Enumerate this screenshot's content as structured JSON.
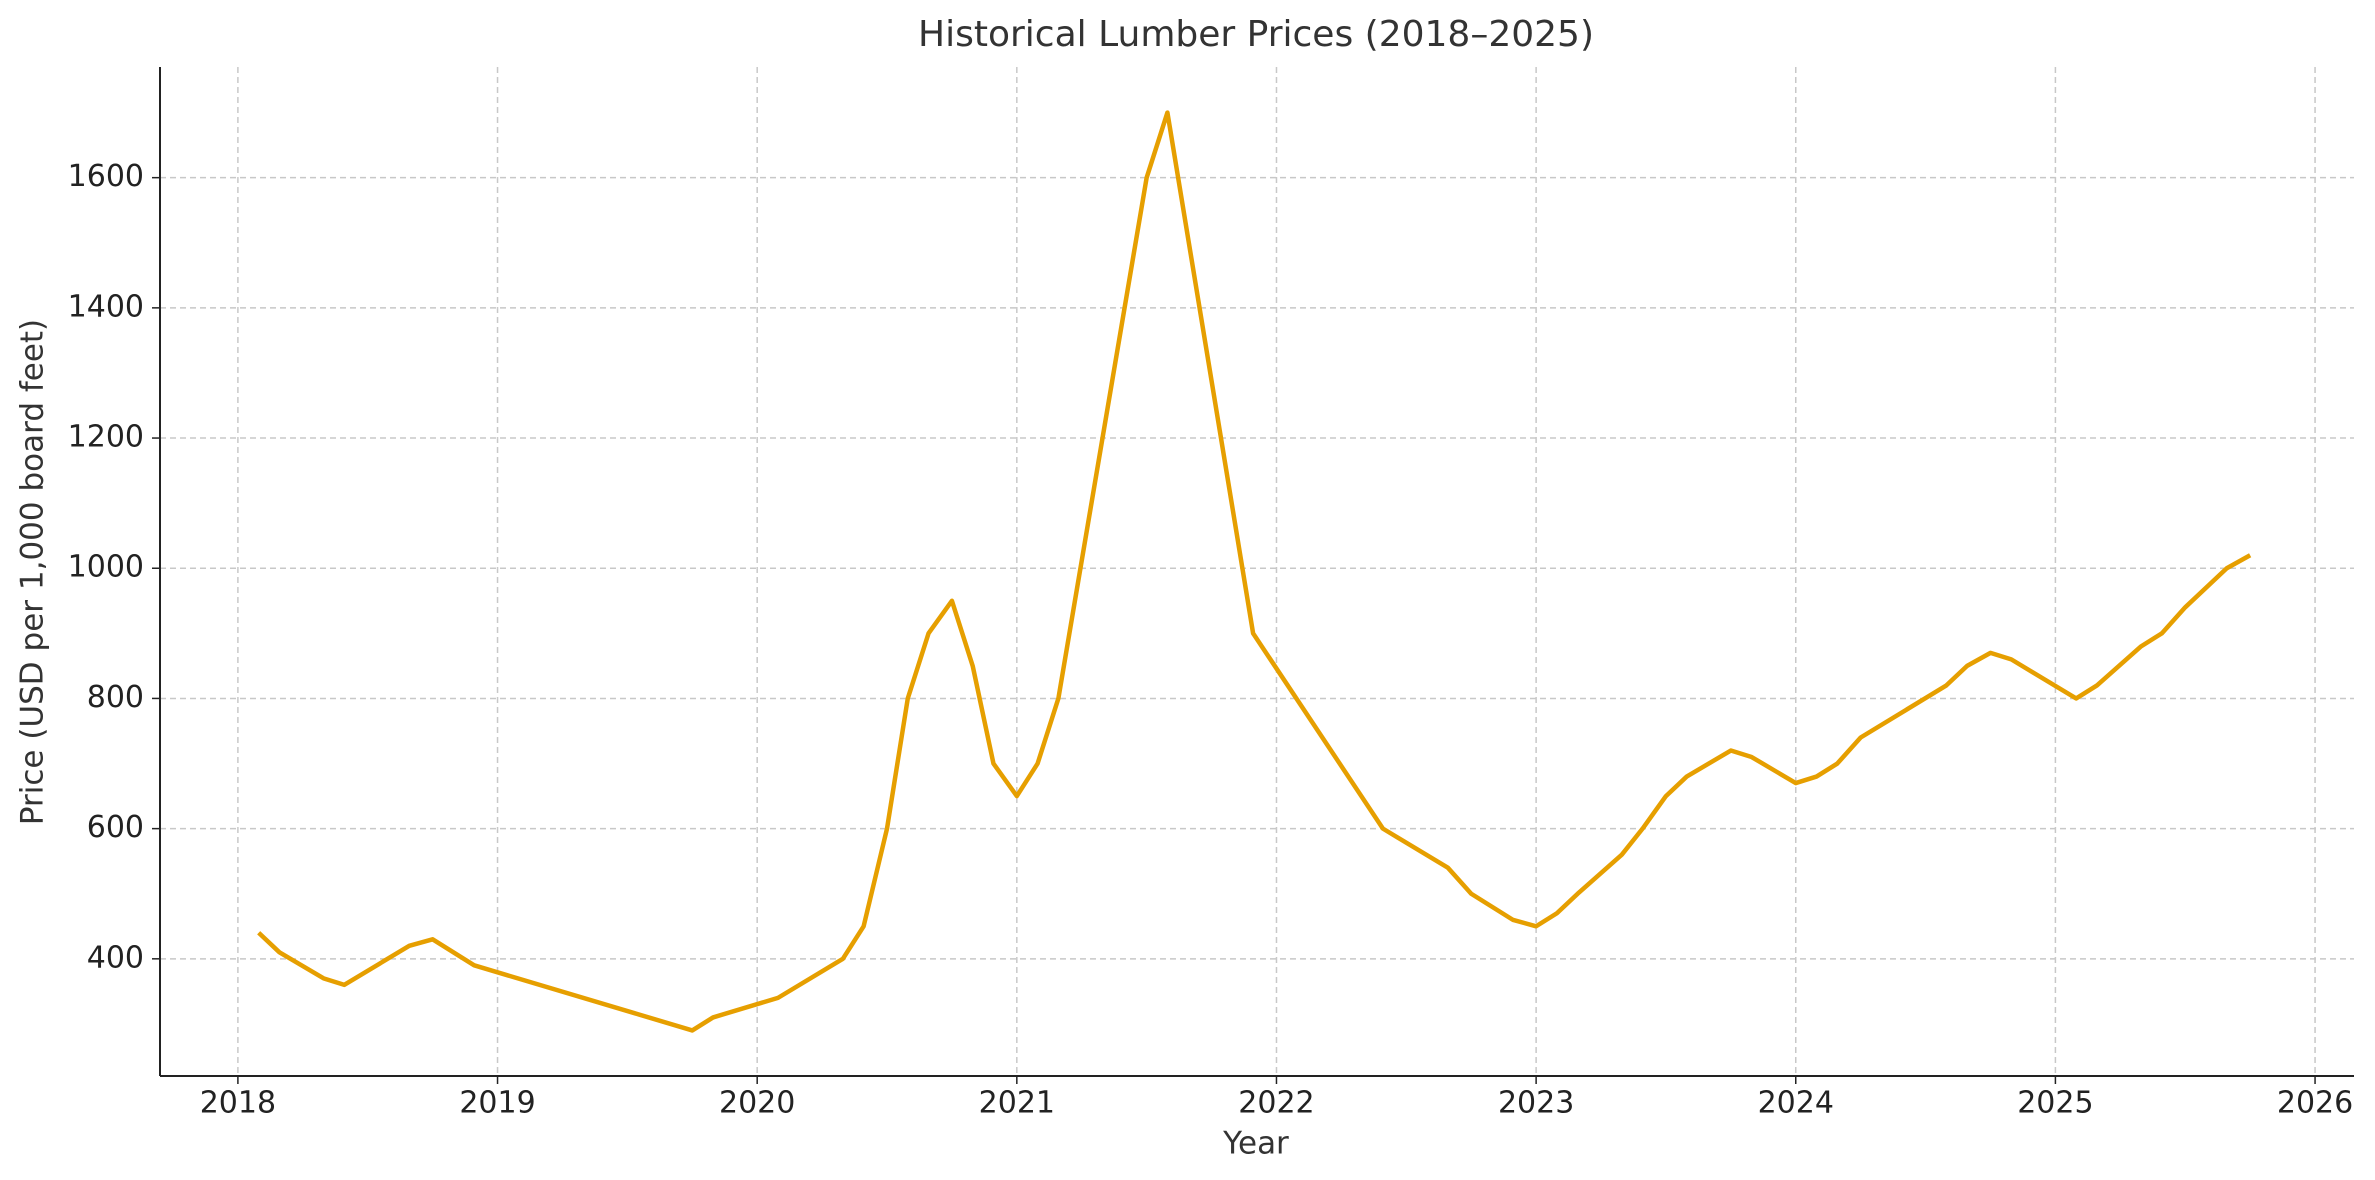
{
  "chart_data": {
    "type": "line",
    "title": "Historical Lumber Prices (2018–2025)",
    "x_label": "Year",
    "y_label": "Price (USD per 1,000 board feet)",
    "xlim": [
      2017.7,
      2026.15
    ],
    "ylim": [
      220,
      1770
    ],
    "xticks": [
      2018,
      2019,
      2020,
      2021,
      2022,
      2023,
      2024,
      2025,
      2026
    ],
    "yticks": [
      400,
      600,
      800,
      1000,
      1200,
      1400,
      1600
    ],
    "grid": true,
    "x": [
      2018.08,
      2018.16,
      2018.33,
      2018.41,
      2018.66,
      2018.75,
      2018.91,
      2019.75,
      2019.83,
      2020.08,
      2020.33,
      2020.41,
      2020.5,
      2020.58,
      2020.66,
      2020.75,
      2020.83,
      2020.91,
      2021.0,
      2021.08,
      2021.16,
      2021.5,
      2021.58,
      2021.91,
      2022.16,
      2022.41,
      2022.66,
      2022.75,
      2022.91,
      2023.0,
      2023.08,
      2023.16,
      2023.33,
      2023.41,
      2023.5,
      2023.58,
      2023.75,
      2023.83,
      2024.0,
      2024.08,
      2024.16,
      2024.25,
      2024.58,
      2024.66,
      2024.75,
      2024.83,
      2025.08,
      2025.16,
      2025.33,
      2025.41,
      2025.5,
      2025.66,
      2025.75
    ],
    "series": [
      {
        "color": "#e69f00",
        "values": [
          440,
          410,
          370,
          360,
          420,
          430,
          390,
          290,
          310,
          340,
          400,
          450,
          600,
          800,
          900,
          950,
          850,
          700,
          650,
          700,
          800,
          1600,
          1700,
          900,
          750,
          600,
          540,
          500,
          460,
          450,
          470,
          500,
          560,
          600,
          650,
          680,
          720,
          710,
          670,
          680,
          700,
          740,
          820,
          850,
          870,
          860,
          800,
          820,
          880,
          900,
          940,
          1000,
          1020
        ]
      }
    ]
  }
}
